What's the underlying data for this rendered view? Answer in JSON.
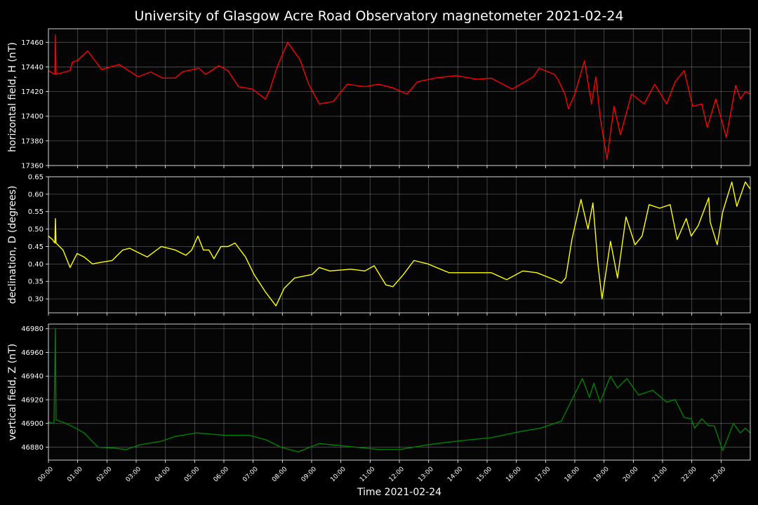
{
  "chart_data": [
    {
      "type": "line",
      "title": "University of Glasgow Acre Road Observatory magnetometer 2021-02-24",
      "ylabel": "horizontal field, H (nT)",
      "xlim": [
        0,
        24
      ],
      "xticks": [
        {
          "value": 0,
          "label": "00:00"
        },
        {
          "value": 1,
          "label": "01:00"
        },
        {
          "value": 2,
          "label": "02:00"
        },
        {
          "value": 3,
          "label": "03:00"
        },
        {
          "value": 4,
          "label": "04:00"
        },
        {
          "value": 5,
          "label": "05:00"
        },
        {
          "value": 6,
          "label": "06:00"
        },
        {
          "value": 7,
          "label": "07:00"
        },
        {
          "value": 8,
          "label": "08:00"
        },
        {
          "value": 9,
          "label": "09:00"
        },
        {
          "value": 10,
          "label": "10:00"
        },
        {
          "value": 11,
          "label": "11:00"
        },
        {
          "value": 12,
          "label": "12:00"
        },
        {
          "value": 13,
          "label": "13:00"
        },
        {
          "value": 14,
          "label": "14:00"
        },
        {
          "value": 15,
          "label": "15:00"
        },
        {
          "value": 16,
          "label": "16:00"
        },
        {
          "value": 17,
          "label": "17:00"
        },
        {
          "value": 18,
          "label": "18:00"
        },
        {
          "value": 19,
          "label": "19:00"
        },
        {
          "value": 20,
          "label": "20:00"
        },
        {
          "value": 21,
          "label": "21:00"
        },
        {
          "value": 22,
          "label": "22:00"
        },
        {
          "value": 23,
          "label": "23:00"
        }
      ],
      "ylim": [
        17360,
        17471
      ],
      "yticks": [
        17360,
        17380,
        17400,
        17420,
        17440,
        17460
      ],
      "grid": true,
      "x": [
        0,
        0.22,
        0.24,
        0.26,
        0.74,
        0.82,
        0.98,
        1.34,
        1.82,
        2.42,
        3.07,
        3.5,
        3.9,
        4.34,
        4.58,
        5.14,
        5.38,
        5.83,
        6.14,
        6.5,
        6.98,
        7.42,
        7.58,
        7.82,
        8.18,
        8.6,
        8.9,
        9.26,
        9.74,
        10.22,
        10.82,
        11.3,
        11.78,
        12.26,
        12.62,
        13.22,
        13.94,
        14.66,
        15.14,
        15.86,
        16.58,
        16.78,
        17.3,
        17.42,
        17.66,
        17.78,
        18,
        18.33,
        18.57,
        18.72,
        18.86,
        19.1,
        19.34,
        19.56,
        19.94,
        20.37,
        20.73,
        21.14,
        21.43,
        21.74,
        22.03,
        22.34,
        22.53,
        22.82,
        23.18,
        23.5,
        23.66,
        23.83,
        24
      ],
      "series": [
        {
          "color": "#ff0000",
          "values": [
            17437,
            17434,
            17466,
            17434,
            17437,
            17444,
            17445,
            17453,
            17438,
            17442,
            17432,
            17436,
            17431,
            17431,
            17436,
            17439,
            17434,
            17441,
            17437,
            17424,
            17422,
            17414,
            17422,
            17440,
            17460,
            17446,
            17426,
            17410,
            17412,
            17426,
            17424,
            17426,
            17423,
            17418,
            17428,
            17431,
            17433,
            17430,
            17431,
            17422,
            17432,
            17439,
            17434,
            17430,
            17418,
            17406,
            17418,
            17445,
            17410,
            17432,
            17400,
            17365,
            17408,
            17385,
            17418,
            17410,
            17426,
            17410,
            17428,
            17437,
            17408,
            17410,
            17391,
            17414,
            17383,
            17425,
            17414,
            17420,
            17418
          ]
        }
      ]
    },
    {
      "type": "line",
      "ylabel": "declination, D (degrees)",
      "xlim": [
        0,
        24
      ],
      "xticks": [
        0,
        1,
        2,
        3,
        4,
        5,
        6,
        7,
        8,
        9,
        10,
        11,
        12,
        13,
        14,
        15,
        16,
        17,
        18,
        19,
        20,
        21,
        22,
        23
      ],
      "ylim": [
        0.26,
        0.65
      ],
      "yticks": [
        {
          "value": 0.3,
          "label": "0.30"
        },
        0.35,
        {
          "value": 0.4,
          "label": "0.40"
        },
        0.45,
        {
          "value": 0.5,
          "label": "0.50"
        },
        0.55,
        {
          "value": 0.6,
          "label": "0.60"
        },
        0.65
      ],
      "grid": true,
      "x": [
        0,
        0.14,
        0.22,
        0.24,
        0.26,
        0.5,
        0.74,
        0.98,
        1.22,
        1.51,
        1.82,
        2.18,
        2.54,
        2.78,
        3.14,
        3.38,
        3.86,
        4.34,
        4.7,
        4.9,
        5.11,
        5.3,
        5.49,
        5.66,
        5.9,
        6.14,
        6.38,
        6.74,
        7.03,
        7.42,
        7.78,
        8.06,
        8.42,
        9.02,
        9.26,
        9.62,
        10.34,
        10.82,
        11.14,
        11.54,
        11.78,
        12.14,
        12.5,
        12.98,
        13.7,
        14.42,
        15.14,
        15.67,
        16.22,
        16.7,
        17.3,
        17.54,
        17.69,
        17.9,
        18.21,
        18.45,
        18.62,
        18.79,
        18.93,
        19.22,
        19.46,
        19.75,
        20.06,
        20.3,
        20.54,
        20.9,
        21.26,
        21.5,
        21.81,
        21.98,
        22.22,
        22.58,
        22.63,
        22.87,
        23.06,
        23.37,
        23.54,
        23.83,
        24
      ],
      "series": [
        {
          "color": "#ffff00",
          "values": [
            0.48,
            0.47,
            0.46,
            0.53,
            0.46,
            0.44,
            0.39,
            0.43,
            0.42,
            0.4,
            0.405,
            0.41,
            0.44,
            0.445,
            0.43,
            0.42,
            0.45,
            0.44,
            0.425,
            0.44,
            0.48,
            0.44,
            0.44,
            0.415,
            0.45,
            0.45,
            0.46,
            0.42,
            0.37,
            0.32,
            0.28,
            0.33,
            0.36,
            0.37,
            0.39,
            0.38,
            0.385,
            0.38,
            0.395,
            0.34,
            0.335,
            0.37,
            0.41,
            0.4,
            0.375,
            0.375,
            0.375,
            0.355,
            0.38,
            0.375,
            0.355,
            0.345,
            0.36,
            0.47,
            0.585,
            0.5,
            0.575,
            0.4,
            0.3,
            0.465,
            0.36,
            0.535,
            0.455,
            0.48,
            0.57,
            0.56,
            0.57,
            0.47,
            0.53,
            0.48,
            0.51,
            0.59,
            0.52,
            0.455,
            0.55,
            0.635,
            0.565,
            0.635,
            0.615
          ]
        }
      ]
    },
    {
      "type": "line",
      "ylabel": "vertical field, Z (nT)",
      "xlabel": "Time 2021-02-24",
      "xlim": [
        0,
        24
      ],
      "xticks": [
        {
          "value": 0,
          "label": "00:00"
        },
        {
          "value": 1,
          "label": "01:00"
        },
        {
          "value": 2,
          "label": "02:00"
        },
        {
          "value": 3,
          "label": "03:00"
        },
        {
          "value": 4,
          "label": "04:00"
        },
        {
          "value": 5,
          "label": "05:00"
        },
        {
          "value": 6,
          "label": "06:00"
        },
        {
          "value": 7,
          "label": "07:00"
        },
        {
          "value": 8,
          "label": "08:00"
        },
        {
          "value": 9,
          "label": "09:00"
        },
        {
          "value": 10,
          "label": "10:00"
        },
        {
          "value": 11,
          "label": "11:00"
        },
        {
          "value": 12,
          "label": "12:00"
        },
        {
          "value": 13,
          "label": "13:00"
        },
        {
          "value": 14,
          "label": "14:00"
        },
        {
          "value": 15,
          "label": "15:00"
        },
        {
          "value": 16,
          "label": "16:00"
        },
        {
          "value": 17,
          "label": "17:00"
        },
        {
          "value": 18,
          "label": "18:00"
        },
        {
          "value": 19,
          "label": "19:00"
        },
        {
          "value": 20,
          "label": "20:00"
        },
        {
          "value": 21,
          "label": "21:00"
        },
        {
          "value": 22,
          "label": "22:00"
        },
        {
          "value": 23,
          "label": "23:00"
        }
      ],
      "ylim": [
        46869,
        46984
      ],
      "yticks": [
        46880,
        46900,
        46920,
        46940,
        46960,
        46980
      ],
      "grid": true,
      "x": [
        0,
        0.19,
        0.24,
        0.26,
        0.5,
        0.86,
        1.22,
        1.7,
        2.3,
        2.66,
        3.14,
        3.86,
        4.34,
        5.06,
        6.02,
        6.86,
        7.46,
        7.94,
        8.54,
        9.26,
        10.1,
        11.3,
        12.02,
        12.98,
        13.94,
        15.14,
        16.1,
        16.82,
        17.54,
        17.9,
        18.26,
        18.5,
        18.65,
        18.86,
        19.22,
        19.46,
        19.78,
        20.18,
        20.66,
        21.14,
        21.43,
        21.74,
        21.98,
        22.1,
        22.34,
        22.58,
        22.77,
        23.06,
        23.42,
        23.66,
        23.83,
        24
      ],
      "series": [
        {
          "color": "#008000",
          "values": [
            46901,
            46900,
            46980,
            46903,
            46901,
            46897,
            46892,
            46880,
            46879,
            46878,
            46882,
            46885,
            46889,
            46892,
            46890,
            46890,
            46886,
            46880,
            46876,
            46883,
            46881,
            46878,
            46878,
            46882,
            46885,
            46888,
            46893,
            46896,
            46902,
            46920,
            46938,
            46922,
            46934,
            46918,
            46940,
            46930,
            46938,
            46924,
            46928,
            46918,
            46920,
            46905,
            46904,
            46896,
            46904,
            46898,
            46898,
            46877,
            46900,
            46892,
            46896,
            46892
          ]
        }
      ]
    }
  ]
}
